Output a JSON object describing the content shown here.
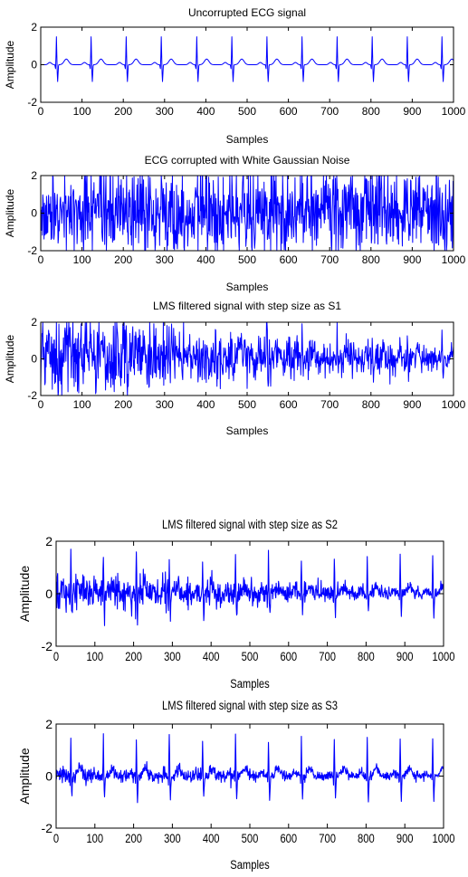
{
  "chart_data": [
    {
      "type": "line",
      "title": "Uncorrupted ECG signal",
      "xlabel": "Samples",
      "ylabel": "Amplitude",
      "xlim": [
        0,
        1000
      ],
      "ylim": [
        -2,
        2
      ],
      "xticks": [
        "0",
        "100",
        "200",
        "300",
        "400",
        "500",
        "600",
        "700",
        "800",
        "900",
        "1000"
      ],
      "yticks": [
        "2",
        "0",
        "-2"
      ],
      "grid": false,
      "line_color": "#0000ff",
      "signal": "clean ECG",
      "r_peaks_x": [
        38,
        122,
        207,
        292,
        378,
        463,
        548,
        633,
        718,
        803,
        888,
        972
      ],
      "r_peak_amplitude": 1.5,
      "s_wave_amplitude": -0.9,
      "noise_amplitude": 0.0
    },
    {
      "type": "line",
      "title": "ECG corrupted with White Gaussian Noise",
      "xlabel": "Samples",
      "ylabel": "Amplitude",
      "xlim": [
        0,
        1000
      ],
      "ylim": [
        -2,
        2
      ],
      "xticks": [
        "0",
        "100",
        "200",
        "300",
        "400",
        "500",
        "600",
        "700",
        "800",
        "900",
        "1000"
      ],
      "yticks": [
        "2",
        "0",
        "-2"
      ],
      "grid": false,
      "line_color": "#0000ff",
      "signal": "noisy ECG",
      "r_peaks_x": [
        38,
        122,
        207,
        292,
        378,
        463,
        548,
        633,
        718,
        803,
        888,
        972
      ],
      "r_peak_amplitude": 1.5,
      "s_wave_amplitude": -0.9,
      "noise_amplitude": 1.15
    },
    {
      "type": "line",
      "title": "LMS filtered signal with step size as S1",
      "xlabel": "Samples",
      "ylabel": "Amplitude",
      "xlim": [
        0,
        1000
      ],
      "ylim": [
        -2,
        2
      ],
      "xticks": [
        "0",
        "100",
        "200",
        "300",
        "400",
        "500",
        "600",
        "700",
        "800",
        "900",
        "1000"
      ],
      "yticks": [
        "2",
        "0",
        "-2"
      ],
      "grid": false,
      "line_color": "#0000ff",
      "signal": "filtered S1",
      "r_peaks_x": [
        38,
        122,
        207,
        292,
        378,
        463,
        548,
        633,
        718,
        803,
        888,
        972
      ],
      "r_peak_amplitude": 1.5,
      "s_wave_amplitude": -0.9,
      "noise_amplitude_start": 1.1,
      "noise_amplitude_end": 0.3
    },
    {
      "type": "line",
      "title": "LMS filtered signal with step size as S2",
      "xlabel": "Samples",
      "ylabel": "Amplitude",
      "xlim": [
        0,
        1000
      ],
      "ylim": [
        -2,
        2
      ],
      "xticks": [
        "0",
        "100",
        "200",
        "300",
        "400",
        "500",
        "600",
        "700",
        "800",
        "900",
        "1000"
      ],
      "yticks": [
        "2",
        "0",
        "-2"
      ],
      "grid": false,
      "line_color": "#0000ff",
      "signal": "filtered S2",
      "r_peaks_x": [
        38,
        122,
        207,
        292,
        378,
        463,
        548,
        633,
        718,
        803,
        888,
        972
      ],
      "r_peak_amplitude": 1.5,
      "s_wave_amplitude": -0.9,
      "noise_amplitude_start": 0.35,
      "noise_amplitude_end": 0.08
    },
    {
      "type": "line",
      "title": "LMS filtered signal with step size as S3",
      "xlabel": "Samples",
      "ylabel": "Amplitude",
      "xlim": [
        0,
        1000
      ],
      "ylim": [
        -2,
        2
      ],
      "xticks": [
        "0",
        "100",
        "200",
        "300",
        "400",
        "500",
        "600",
        "700",
        "800",
        "900",
        "1000"
      ],
      "yticks": [
        "2",
        "0",
        "-2"
      ],
      "grid": false,
      "line_color": "#0000ff",
      "signal": "filtered S3",
      "r_peaks_x": [
        38,
        122,
        207,
        292,
        378,
        463,
        548,
        633,
        718,
        803,
        888,
        972
      ],
      "r_peak_amplitude": 1.5,
      "s_wave_amplitude": -0.9,
      "noise_amplitude_start": 0.15,
      "noise_amplitude_end": 0.08
    }
  ]
}
